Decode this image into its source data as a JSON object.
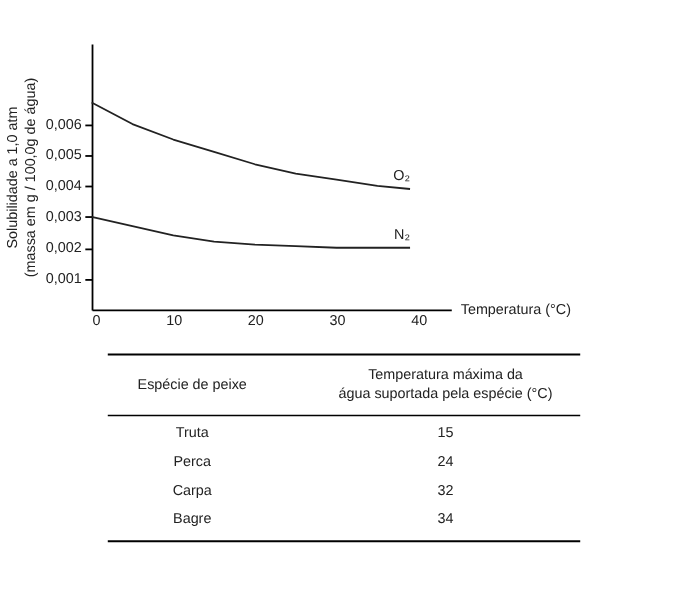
{
  "chart_data": [
    {
      "type": "line",
      "xlabel": "Temperatura (°C)",
      "ylabel": "Solubilidade a 1,0 atm\n(massa em g / 100,0g de água)",
      "series": [
        {
          "name": "O₂",
          "color": "#222222",
          "x": [
            0,
            5,
            10,
            15,
            20,
            25,
            30,
            35,
            39
          ],
          "values": [
            0.0067,
            0.006,
            0.0055,
            0.0051,
            0.0047,
            0.0044,
            0.0042,
            0.004,
            0.0039
          ]
        },
        {
          "name": "N₂",
          "color": "#222222",
          "x": [
            0,
            5,
            10,
            15,
            20,
            25,
            30,
            35,
            39
          ],
          "values": [
            0.003,
            0.0027,
            0.0024,
            0.0022,
            0.0021,
            0.00205,
            0.002,
            0.002,
            0.002
          ]
        }
      ],
      "xlim": [
        0,
        44
      ],
      "xticks": [
        0,
        10,
        20,
        30,
        40
      ],
      "ylim": [
        0,
        0.0086
      ],
      "yticks": [
        {
          "value": 0.001,
          "label": "0,001"
        },
        {
          "value": 0.002,
          "label": "0,002"
        },
        {
          "value": 0.003,
          "label": "0,003"
        },
        {
          "value": 0.004,
          "label": "0,004"
        },
        {
          "value": 0.005,
          "label": "0,005"
        },
        {
          "value": 0.006,
          "label": "0,006"
        }
      ],
      "grid": false,
      "legend": false,
      "marker": "none",
      "line_style": "solid"
    },
    {
      "type": "other",
      "xlabel": "Espécie de peixe",
      "ylabel": "Temperatura máxima da\nágua suportada pela espécie (°C)",
      "categories": [
        "Truta",
        "Perca",
        "Carpa",
        "Bagre"
      ],
      "values": [
        15,
        24,
        32,
        34
      ],
      "data_labels": true
    }
  ]
}
